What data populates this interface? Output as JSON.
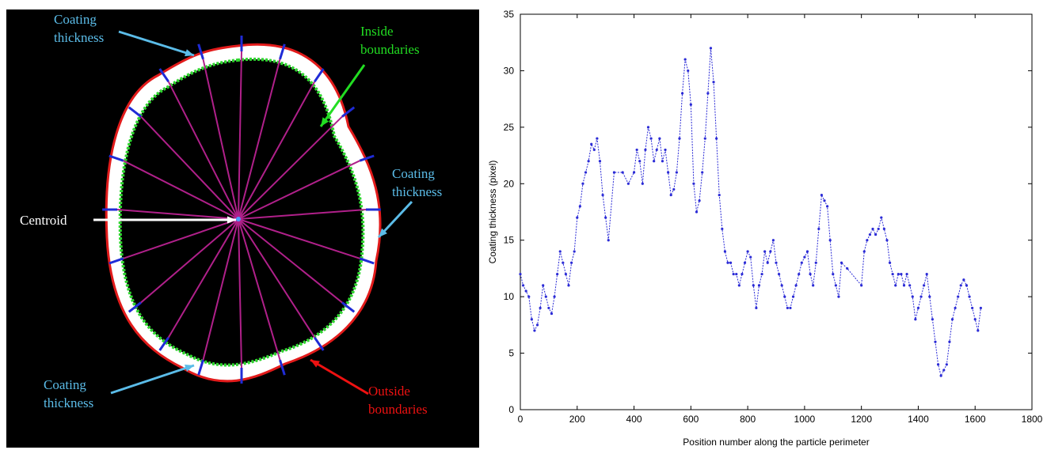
{
  "diagram": {
    "labels": [
      {
        "lines": [
          "Coating",
          "thickness"
        ],
        "color": "#5bbce8"
      },
      {
        "lines": [
          "Inside",
          "boundaries"
        ],
        "color": "#22dd22"
      },
      {
        "lines": [
          "Coating",
          "thickness"
        ],
        "color": "#5bbce8"
      },
      {
        "lines": [
          "Centroid"
        ],
        "color": "#ffffff"
      },
      {
        "lines": [
          "Coating",
          "thickness"
        ],
        "color": "#5bbce8"
      },
      {
        "lines": [
          "Outside",
          "boundaries"
        ],
        "color": "#ee1111"
      }
    ]
  },
  "chart_data": {
    "type": "line",
    "x_label": "Position number along the particle perimeter",
    "y_label": "Coating thickness (pixel)",
    "xlim": [
      0,
      1800
    ],
    "xticks": [
      0,
      200,
      400,
      600,
      800,
      1000,
      1200,
      1400,
      1600,
      1800
    ],
    "ylim": [
      0,
      35
    ],
    "yticks": [
      0,
      5,
      10,
      15,
      20,
      25,
      30,
      35
    ],
    "grid": false,
    "series": [
      {
        "color": "#2b2bd6",
        "x": [
          0,
          10,
          20,
          30,
          40,
          50,
          60,
          70,
          80,
          90,
          100,
          110,
          120,
          130,
          140,
          150,
          160,
          170,
          180,
          190,
          200,
          210,
          220,
          230,
          240,
          250,
          260,
          270,
          280,
          290,
          300,
          310,
          330,
          360,
          380,
          400,
          410,
          420,
          430,
          440,
          450,
          460,
          470,
          480,
          490,
          500,
          510,
          520,
          530,
          540,
          550,
          560,
          570,
          580,
          590,
          600,
          610,
          620,
          630,
          640,
          650,
          660,
          670,
          680,
          690,
          700,
          710,
          720,
          730,
          740,
          750,
          760,
          770,
          780,
          790,
          800,
          810,
          820,
          830,
          840,
          850,
          860,
          870,
          880,
          890,
          900,
          910,
          920,
          930,
          940,
          950,
          960,
          970,
          980,
          990,
          1000,
          1010,
          1020,
          1030,
          1040,
          1050,
          1060,
          1070,
          1080,
          1090,
          1100,
          1110,
          1120,
          1130,
          1150,
          1200,
          1210,
          1220,
          1230,
          1240,
          1250,
          1260,
          1270,
          1280,
          1290,
          1300,
          1310,
          1320,
          1330,
          1340,
          1350,
          1360,
          1370,
          1380,
          1390,
          1400,
          1410,
          1420,
          1430,
          1440,
          1450,
          1460,
          1470,
          1480,
          1490,
          1500,
          1510,
          1520,
          1530,
          1540,
          1550,
          1560,
          1570,
          1580,
          1590,
          1600,
          1610,
          1620
        ],
        "values": [
          12,
          11,
          10.5,
          10,
          8,
          7,
          7.5,
          9,
          11,
          10,
          9,
          8.5,
          10,
          12,
          14,
          13,
          12,
          11,
          13,
          14,
          17,
          18,
          20,
          21,
          22,
          23.5,
          23,
          24,
          22,
          19,
          17,
          15,
          21,
          21,
          20,
          21,
          23,
          22,
          20,
          23,
          25,
          24,
          22,
          23,
          24,
          22,
          23,
          21,
          19,
          19.5,
          21,
          24,
          28,
          31,
          30,
          27,
          20,
          17.5,
          18.5,
          21,
          24,
          28,
          32,
          29,
          24,
          19,
          16,
          14,
          13,
          13,
          12,
          12,
          11,
          12,
          13,
          14,
          13.5,
          11,
          9,
          11,
          12,
          14,
          13,
          14,
          15,
          13,
          12,
          11,
          10,
          9,
          9,
          10,
          11,
          12,
          13,
          13.5,
          14,
          12,
          11,
          13,
          16,
          19,
          18.5,
          18,
          15,
          12,
          11,
          10,
          13,
          12.5,
          11,
          14,
          15,
          15.5,
          16,
          15.5,
          16,
          17,
          16,
          15,
          13,
          12,
          11,
          12,
          12,
          11,
          12,
          11,
          10,
          8,
          9,
          10,
          11,
          12,
          10,
          8,
          6,
          4,
          3,
          3.5,
          4,
          6,
          8,
          9,
          10,
          11,
          11.5,
          11,
          10,
          9,
          8,
          7,
          9
        ]
      }
    ]
  }
}
